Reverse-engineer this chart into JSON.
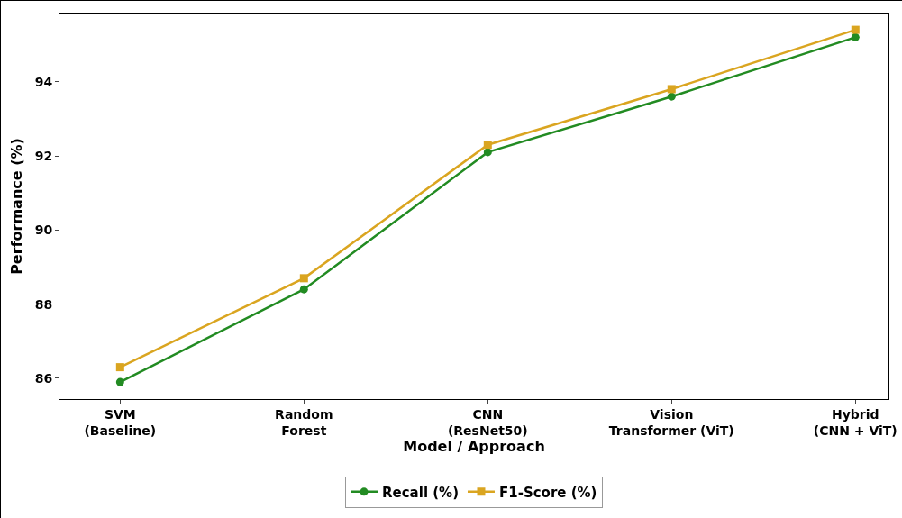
{
  "chart_data": {
    "type": "line",
    "xlabel": "Model / Approach",
    "ylabel": "Performance (%)",
    "categories": [
      "SVM\n(Baseline)",
      "Random\nForest",
      "CNN\n(ResNet50)",
      "Vision\nTransformer (ViT)",
      "Hybrid\n(CNN + ViT)"
    ],
    "series": [
      {
        "name": "Recall (%)",
        "color": "#228b22",
        "marker": "circle",
        "values": [
          85.9,
          88.4,
          92.1,
          93.6,
          95.2
        ]
      },
      {
        "name": "F1-Score (%)",
        "color": "#daa520",
        "marker": "square",
        "values": [
          86.3,
          88.7,
          92.3,
          93.8,
          95.4
        ]
      }
    ],
    "ylim": [
      85.44,
      95.84
    ],
    "yticks": [
      86,
      88,
      90,
      92,
      94
    ],
    "grid": false,
    "legend": "bottom",
    "line_style": "solid"
  }
}
